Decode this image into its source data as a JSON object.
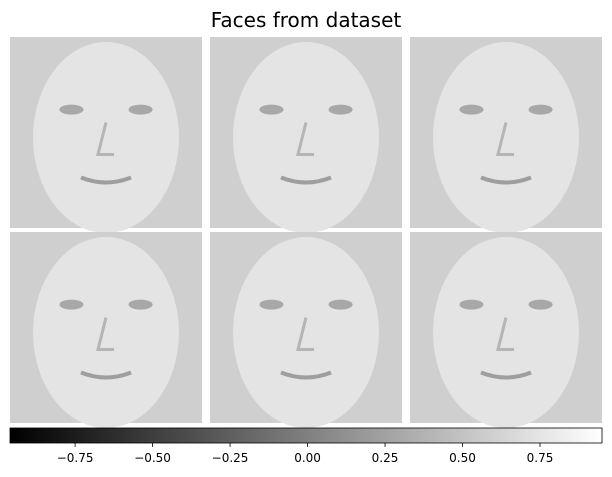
{
  "chart_data": {
    "type": "image_grid",
    "title": "Faces from dataset",
    "rows": 2,
    "cols": 3,
    "colorbar": {
      "cmap": "gray",
      "clim": [
        -0.96,
        0.95
      ],
      "ticks": [
        {
          "value": -0.75,
          "label": "−0.75"
        },
        {
          "value": -0.5,
          "label": "−0.50"
        },
        {
          "value": -0.25,
          "label": "−0.25"
        },
        {
          "value": 0,
          "label": "0.00"
        },
        0.25,
        {
          "value": 0.5,
          "label": "0.50"
        },
        0.75
      ]
    }
  }
}
